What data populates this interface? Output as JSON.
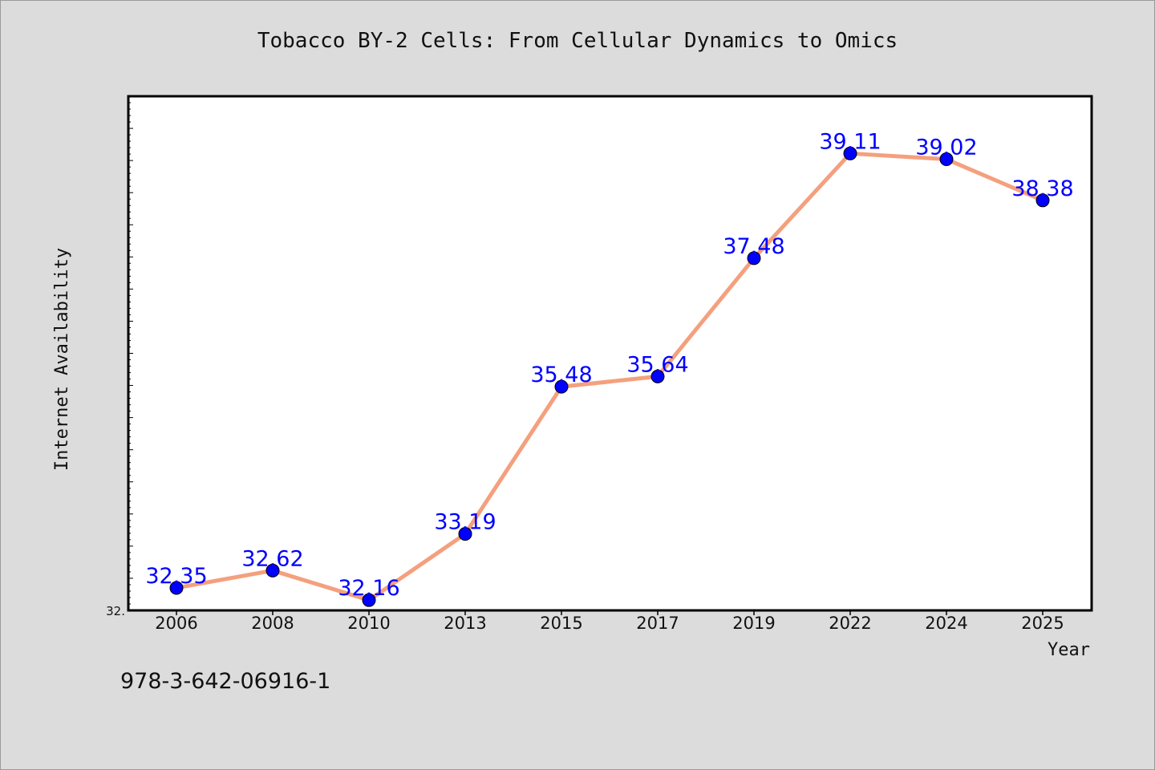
{
  "chart_data": {
    "type": "line",
    "title": "Tobacco BY-2 Cells: From Cellular Dynamics to Omics",
    "xlabel": "Year",
    "ylabel": "Internet Availability",
    "categories": [
      "2006",
      "2008",
      "2010",
      "2013",
      "2015",
      "2017",
      "2019",
      "2022",
      "2024",
      "2025"
    ],
    "series": [
      {
        "values": [
          32.35,
          32.62,
          32.16,
          33.19,
          35.48,
          35.64,
          37.48,
          39.11,
          39.02,
          38.38
        ],
        "labels": [
          "32.35",
          "32.62",
          "32.16",
          "33.19",
          "35.48",
          "35.64",
          "37.48",
          "39.11",
          "39.02",
          "38.38"
        ],
        "line_color": "#f4a07e",
        "marker_color": "#0000ff"
      }
    ],
    "ylim": [
      32.0,
      40.0
    ],
    "y_tick_labels": [
      "32."
    ],
    "grid": false,
    "label_color": "#0000ff"
  },
  "footer": {
    "isbn": "978-3-642-06916-1"
  }
}
